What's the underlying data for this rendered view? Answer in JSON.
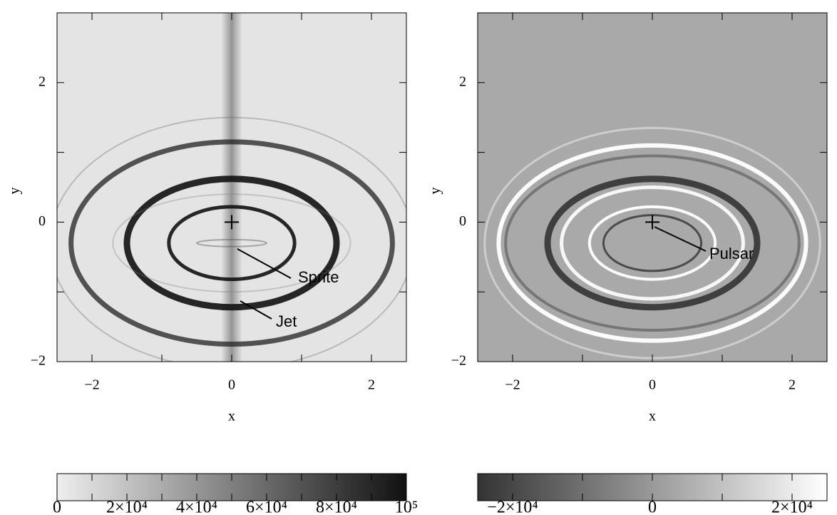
{
  "chart_data": [
    {
      "type": "image",
      "xlabel": "x",
      "ylabel": "y",
      "xlim": [
        -2.5,
        2.5
      ],
      "ylim": [
        -2,
        3
      ],
      "xticks": [
        {
          "value": -2,
          "label": "−2"
        },
        0,
        2
      ],
      "xminorticks": [
        -1,
        1
      ],
      "yticks": [
        {
          "value": -2,
          "label": "−2"
        },
        0,
        2
      ],
      "yminorticks": [
        -1,
        1
      ],
      "annotations": [
        "Sprite",
        "Jet"
      ],
      "colorbar": {
        "lim": [
          0,
          100000
        ],
        "colors": [
          "#eeeeee",
          "#111111"
        ],
        "ticks": [
          0,
          {
            "value": 20000,
            "label": "2×10⁴"
          },
          {
            "value": 40000,
            "label": "4×10⁴"
          },
          {
            "value": 60000,
            "label": "6×10⁴"
          },
          {
            "value": 80000,
            "label": "8×10⁴"
          },
          {
            "value": 100000,
            "label": "10⁵"
          }
        ],
        "minorticks": [
          10000,
          30000,
          50000,
          70000,
          90000
        ]
      }
    },
    {
      "type": "image",
      "xlabel": "x",
      "ylabel": "y",
      "xlim": [
        -2.5,
        2.5
      ],
      "ylim": [
        -2,
        3
      ],
      "xticks": [
        {
          "value": -2,
          "label": "−2"
        },
        0,
        2
      ],
      "xminorticks": [
        -1,
        1
      ],
      "yticks": [
        {
          "value": -2,
          "label": "−2"
        },
        0,
        2
      ],
      "yminorticks": [
        -1,
        1
      ],
      "annotations": [
        "Pulsar"
      ],
      "colorbar": {
        "lim": [
          -25000,
          25000
        ],
        "colors": [
          "#333333",
          "#ffffff"
        ],
        "ticks": [
          {
            "value": -20000,
            "label": "−2×10⁴"
          },
          0,
          {
            "value": 20000,
            "label": "2×10⁴"
          }
        ],
        "minorticks": [
          -10000,
          10000
        ]
      }
    }
  ]
}
